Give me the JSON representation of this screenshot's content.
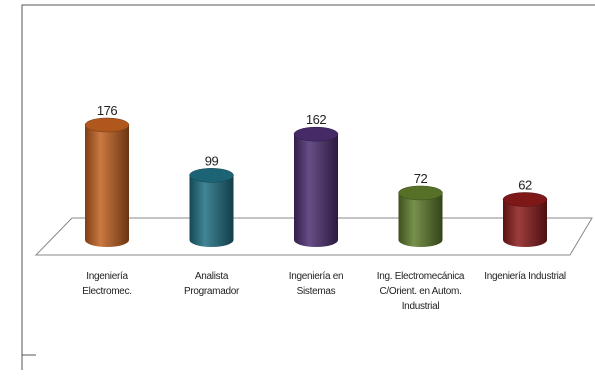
{
  "chart_data": {
    "type": "bar",
    "categories": [
      [
        "Ingeniería",
        "Electromec."
      ],
      [
        "Analista",
        "Programador"
      ],
      [
        "Ingeniería en",
        "Sistemas"
      ],
      [
        "Ing. Electromecánica",
        "C/Orient. en Autom.",
        "Industrial"
      ],
      [
        "Ingeniería Industrial"
      ]
    ],
    "values": [
      176,
      99,
      162,
      72,
      62
    ],
    "colors": [
      "#c2611f",
      "#1f6f82",
      "#4d2f72",
      "#5f7c2c",
      "#8c1b1b"
    ]
  }
}
